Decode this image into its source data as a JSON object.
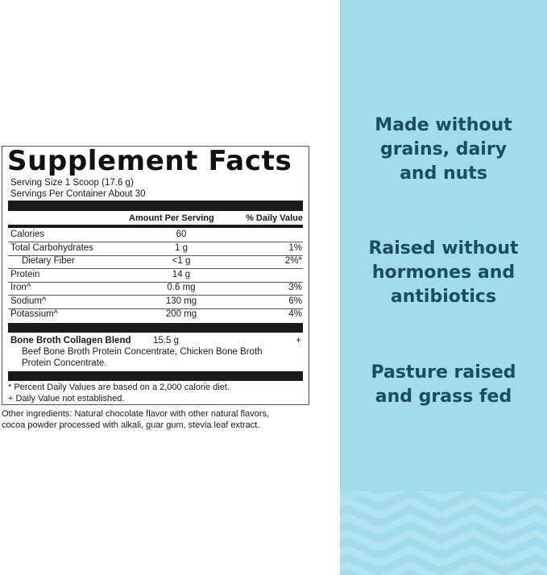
{
  "label": {
    "title": "Supplement Facts",
    "serving_size": "Serving Size 1 Scoop (17.6 g)",
    "servings_per_container": "Servings Per Container About 30",
    "header_amount": "Amount Per Serving",
    "header_dv": "% Daily Value",
    "rows": [
      {
        "name": "Calories",
        "amount": "60",
        "dv": ""
      },
      {
        "name": "Total Carbohydrates",
        "amount": "1 g",
        "dv": "1%"
      },
      {
        "name": "Dietary Fiber",
        "amount": "<1 g",
        "dv": "2%*"
      },
      {
        "name": "Protein",
        "amount": "14 g",
        "dv": ""
      },
      {
        "name": "Iron^",
        "amount": "0.6 mg",
        "dv": "3%"
      },
      {
        "name": "Sodium^",
        "amount": "130 mg",
        "dv": "6%"
      },
      {
        "name": "Potassium^",
        "amount": "200 mg",
        "dv": "4%"
      }
    ],
    "blend": {
      "name": "Bone Broth Collagen Blend",
      "amount": "15.5 g",
      "dv": "+",
      "ingredients_line1": "Beef Bone Broth Protein Concentrate, Chicken Bone Broth",
      "ingredients_line2": "Protein Concentrate."
    },
    "footnote1": "* Percent Daily Values are based on a 2,000 calorie diet.",
    "footnote2": "+ Daily Value not established."
  },
  "other_ingredients": {
    "line1": "Other ingredients: Natural chocolate flavor with other natural flavors,",
    "line2": "cocoa powder processed with alkali, guar gum, stevia leaf extract."
  },
  "claims": [
    {
      "l1": "Made without",
      "l2": "grains, dairy",
      "l3": "and nuts"
    },
    {
      "l1": "Raised without",
      "l2": "hormones and",
      "l3": "antibiotics"
    },
    {
      "l1": "Pasture raised",
      "l2": "and grass fed"
    }
  ],
  "colors": {
    "panel": "#a2dcec",
    "claim_text": "#1d4c5c"
  }
}
